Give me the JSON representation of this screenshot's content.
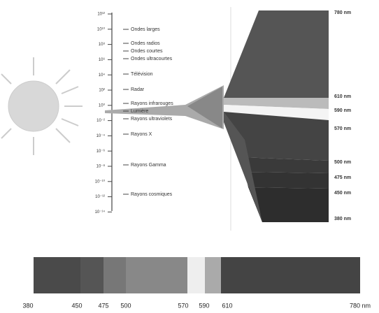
{
  "left_scale": {
    "ticks": [
      "10¹²",
      "10¹⁰",
      "10⁸",
      "10⁶",
      "10⁴",
      "10²",
      "10⁰",
      "10⁻²",
      "10⁻⁴",
      "10⁻⁶",
      "10⁻⁸",
      "10⁻¹⁰",
      "10⁻¹²",
      "10⁻¹⁴"
    ]
  },
  "bands": [
    {
      "label": "Ondes larges"
    },
    {
      "label": "Ondes radios"
    },
    {
      "label": "Ondes courtes"
    },
    {
      "label": "Ondes ultracourtes"
    },
    {
      "label": "Télévision"
    },
    {
      "label": "Radar"
    },
    {
      "label": "Rayons infrarouges"
    },
    {
      "label": "Lumière"
    },
    {
      "label": "Rayons ultraviolets"
    },
    {
      "label": "Rayons X"
    },
    {
      "label": "Rayons Gamma"
    },
    {
      "label": "Rayons cosmiques"
    }
  ],
  "right_scale": {
    "labels": [
      "780 nm",
      "610 nm",
      "590 nm",
      "570 nm",
      "500 nm",
      "475 nm",
      "450 nm",
      "380 nm"
    ]
  },
  "bottom_scale": {
    "labels": [
      "380",
      "450",
      "475",
      "500",
      "570",
      "590",
      "610",
      "780 nm"
    ]
  }
}
